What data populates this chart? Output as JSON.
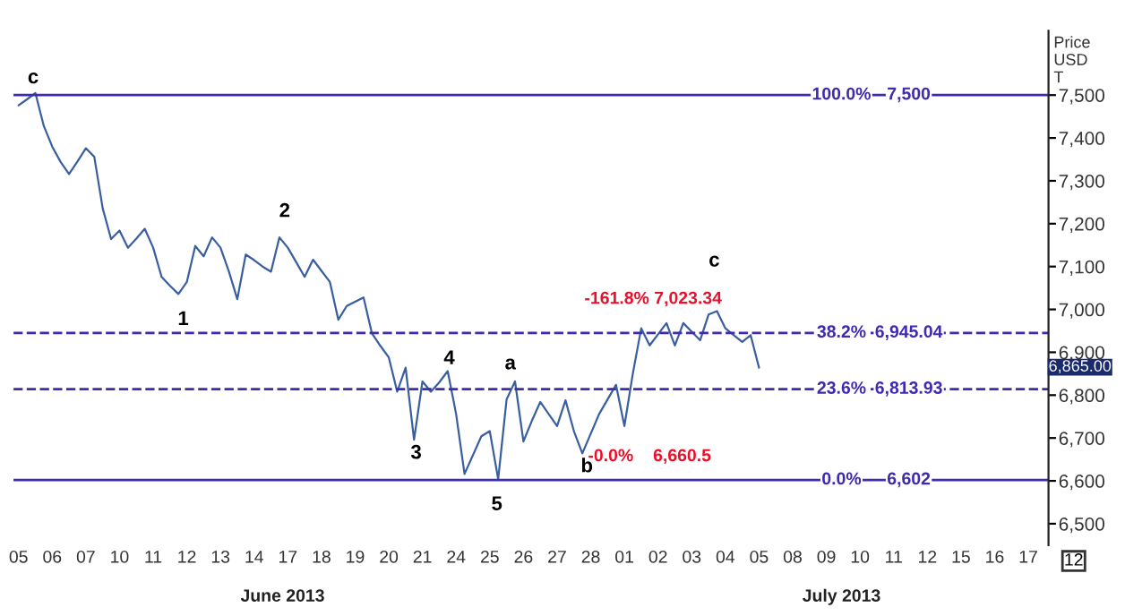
{
  "chart_data": {
    "type": "line",
    "ylabel": "Price\nUSD\nT",
    "color": "#3a5fa0",
    "grid": false,
    "legend": false,
    "marker": "none",
    "line_style": "solid",
    "categories": [
      "05",
      null,
      null,
      null,
      "06",
      null,
      null,
      null,
      "07",
      null,
      null,
      null,
      "10",
      null,
      null,
      null,
      "11",
      null,
      null,
      null,
      "12",
      null,
      null,
      null,
      "13",
      null,
      null,
      null,
      "14",
      null,
      null,
      null,
      "17",
      null,
      null,
      null,
      "18",
      null,
      null,
      null,
      "19",
      null,
      null,
      null,
      "20",
      null,
      null,
      null,
      "21",
      null,
      null,
      null,
      "24",
      null,
      null,
      null,
      "25",
      null,
      null,
      null,
      "26",
      null,
      null,
      null,
      "27",
      null,
      null,
      null,
      "28",
      null,
      null,
      null,
      "01",
      null,
      null,
      null,
      "02",
      null,
      null,
      null,
      "03",
      null,
      null,
      null,
      "04",
      null,
      null,
      null,
      "05",
      null,
      null,
      null,
      "08",
      null,
      null,
      null,
      "09",
      null,
      null,
      null,
      "10",
      null,
      null,
      null,
      "11",
      null,
      null,
      null,
      "12",
      null,
      null,
      null,
      "15",
      null,
      null,
      null,
      "16",
      null,
      null,
      null,
      "17"
    ],
    "values": [
      7476,
      7490,
      7505,
      7428,
      7380,
      7344,
      7316,
      7345,
      7376,
      7356,
      7236,
      7164,
      7184,
      7144,
      7165,
      7188,
      7144,
      7076,
      7055,
      7036,
      7064,
      7148,
      7124,
      7168,
      7144,
      7088,
      7024,
      7128,
      7115,
      7100,
      7088,
      7168,
      7144,
      7110,
      7076,
      7116,
      7090,
      7064,
      6976,
      7008,
      7018,
      7028,
      6944,
      6915,
      6888,
      6808,
      6864,
      6696,
      6832,
      6808,
      6830,
      6856,
      6756,
      6616,
      6660,
      6704,
      6716,
      6604,
      6790,
      6832,
      6692,
      6740,
      6784,
      6756,
      6728,
      6788,
      6716,
      6664,
      6710,
      6756,
      6790,
      6824,
      6728,
      6850,
      6956,
      6916,
      6942,
      6968,
      6916,
      6968,
      6948,
      6928,
      6988,
      6996,
      6956,
      6940,
      6924,
      6940,
      6864,
      null,
      null,
      null,
      null,
      null,
      null,
      null,
      null,
      null,
      null,
      null,
      null,
      null,
      null,
      null,
      null,
      null,
      null,
      null,
      null,
      null,
      null,
      null,
      null,
      null,
      null,
      null,
      null,
      null,
      null,
      null,
      null
    ],
    "ylim": [
      6450,
      7650
    ],
    "yticks": [
      {
        "value": 6500,
        "label": "6,500"
      },
      {
        "value": 6600,
        "label": "6,600"
      },
      {
        "value": 6700,
        "label": "6,700"
      },
      {
        "value": 6800,
        "label": "6,800"
      },
      {
        "value": 6900,
        "label": "6,900"
      },
      {
        "value": 7000,
        "label": "7,000"
      },
      {
        "value": 7100,
        "label": "7,100"
      },
      {
        "value": 7200,
        "label": "7,200"
      },
      {
        "value": 7300,
        "label": "7,300"
      },
      {
        "value": 7400,
        "label": "7,400"
      },
      {
        "value": 7500,
        "label": "7,500"
      }
    ],
    "ref_lines": [
      {
        "axis": "y",
        "value": 7500,
        "label": "7,500",
        "color": "#3f2bb0",
        "line_style": "solid"
      },
      {
        "axis": "y",
        "value": 6945.04,
        "label": "6,945.04",
        "color": "#3f2bb0",
        "line_style": "dashed"
      },
      {
        "axis": "y",
        "value": 6813.93,
        "label": "6,813.93",
        "color": "#3f2bb0",
        "line_style": "dashed"
      },
      {
        "axis": "y",
        "value": 6602,
        "label": "6,602",
        "color": "#3f2bb0",
        "line_style": "solid"
      }
    ],
    "annotations": [
      {
        "text": "100.0%",
        "y": 7500
      },
      {
        "text": "38.2%",
        "y": 6945.04
      },
      {
        "text": "23.6%",
        "y": 6813.93
      },
      {
        "text": "0.0%",
        "y": 6602
      },
      "6,865.00",
      "c",
      "1",
      "2",
      "3",
      "4",
      "5",
      "a",
      "b",
      "c",
      "-161.8% 7,023.34",
      "-0.0%",
      "6,660.5",
      "June 2013",
      "July 2013",
      "12"
    ]
  }
}
